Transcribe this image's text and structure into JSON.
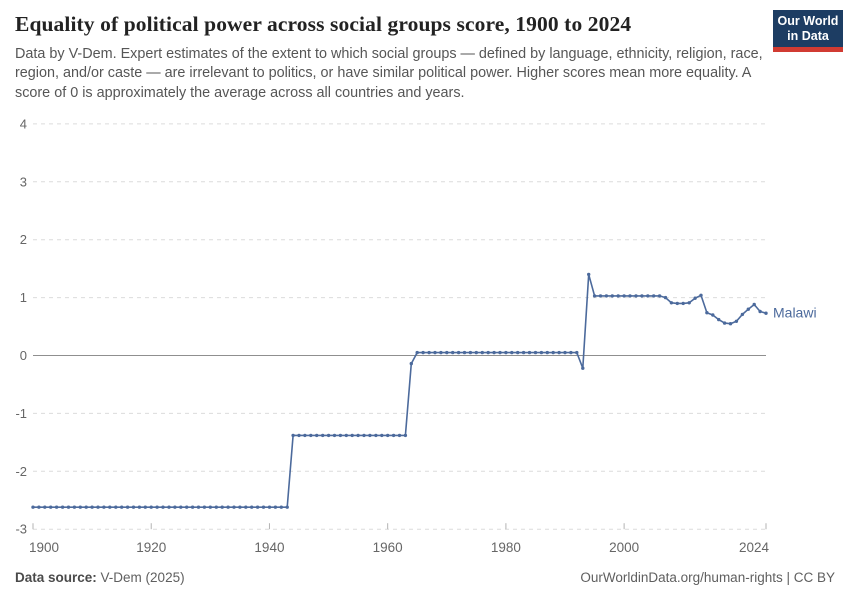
{
  "header": {
    "title": "Equality of political power across social groups score, 1900 to 2024",
    "subtitle": "Data by V-Dem. Expert estimates of the extent to which social groups — defined by language, ethnicity, religion, race, region, and/or caste — are irrelevant to politics, or have similar political power. Higher scores mean more equality. A score of 0 is approximately the average across all countries and years.",
    "logo": {
      "line1": "Our World",
      "line2": "in Data",
      "bg_color": "#1d3d63",
      "accent_color": "#d13b32"
    }
  },
  "chart_data": {
    "type": "line",
    "title": "Equality of political power across social groups score, 1900 to 2024",
    "xlabel": "",
    "ylabel": "",
    "xlim": [
      1900,
      2024
    ],
    "ylim": [
      -3,
      4
    ],
    "x_ticks": [
      1900,
      1920,
      1940,
      1960,
      1980,
      2000,
      2024
    ],
    "y_ticks": [
      4,
      3,
      2,
      1,
      0,
      -1,
      -2,
      -3
    ],
    "grid": "horizontal-dashed",
    "zero_line": true,
    "legend_position": "end-of-line-label",
    "series": [
      {
        "name": "Malawi",
        "color": "#4c6a9c",
        "runs_year_start_end_value": [
          [
            1900,
            1943,
            -2.62
          ],
          [
            1944,
            1963,
            -1.38
          ],
          [
            1964,
            1964,
            -0.14
          ],
          [
            1965,
            1992,
            0.05
          ],
          [
            1993,
            1993,
            -0.22
          ],
          [
            1994,
            1994,
            1.4
          ],
          [
            1995,
            2006,
            1.03
          ],
          [
            2007,
            2007,
            1.0
          ],
          [
            2008,
            2008,
            0.91
          ],
          [
            2009,
            2010,
            0.9
          ],
          [
            2011,
            2011,
            0.91
          ],
          [
            2012,
            2012,
            0.99
          ],
          [
            2013,
            2013,
            1.04
          ],
          [
            2014,
            2014,
            0.74
          ],
          [
            2015,
            2015,
            0.7
          ],
          [
            2016,
            2016,
            0.62
          ],
          [
            2017,
            2017,
            0.56
          ],
          [
            2018,
            2018,
            0.55
          ],
          [
            2019,
            2019,
            0.59
          ],
          [
            2020,
            2020,
            0.71
          ],
          [
            2021,
            2021,
            0.8
          ],
          [
            2022,
            2022,
            0.88
          ],
          [
            2023,
            2023,
            0.76
          ],
          [
            2024,
            2024,
            0.73
          ]
        ]
      }
    ],
    "colors": {
      "gridline": "#dcdcdc",
      "zero_line": "#8f8f8f",
      "tick_label": "#666666",
      "axis_tick": "#b3b3b3"
    }
  },
  "footer": {
    "source_label": "Data source:",
    "source_value": "V-Dem (2025)",
    "link": "OurWorldinData.org/human-rights",
    "separator": " | ",
    "license": "CC BY"
  }
}
